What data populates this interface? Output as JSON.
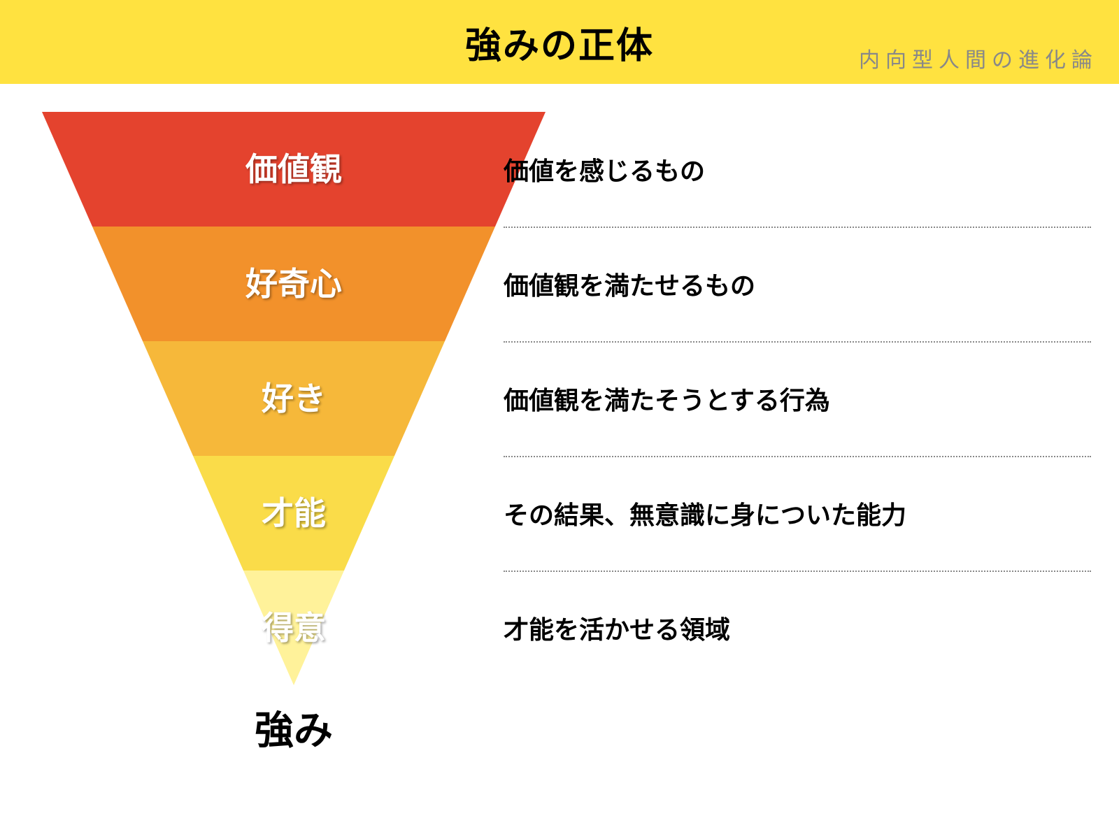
{
  "header": {
    "title": "強みの正体",
    "title_fontsize": 52,
    "title_color": "#000000",
    "background_color": "#ffe240",
    "watermark": "内向型人間の進化論",
    "watermark_fontsize": 30,
    "watermark_color": "#888888"
  },
  "funnel": {
    "type": "inverted-triangle-funnel",
    "top_width": 720,
    "total_height": 820,
    "layers": [
      {
        "label": "価値観",
        "color": "#e4432e",
        "label_fontsize": 46
      },
      {
        "label": "好奇心",
        "color": "#f2912b",
        "label_fontsize": 46
      },
      {
        "label": "好き",
        "color": "#f6b83a",
        "label_fontsize": 46
      },
      {
        "label": "才能",
        "color": "#fadc49",
        "label_fontsize": 46
      },
      {
        "label": "得意",
        "color": "#fff29a",
        "label_fontsize": 46
      }
    ],
    "layer_height": 164,
    "bottom_label": "強み",
    "bottom_label_fontsize": 56,
    "bottom_label_color": "#000000",
    "layer_label_color": "#ffffff"
  },
  "descriptions": [
    {
      "text": "価値を感じるもの",
      "fontsize": 36
    },
    {
      "text": "価値観を満たせるもの",
      "fontsize": 36
    },
    {
      "text": "価値観を満たそうとする行為",
      "fontsize": 36
    },
    {
      "text": "その結果、無意識に身についた能力",
      "fontsize": 36
    },
    {
      "text": "才能を活かせる領域",
      "fontsize": 36
    }
  ],
  "divider_color": "#888888",
  "background_color": "#ffffff"
}
